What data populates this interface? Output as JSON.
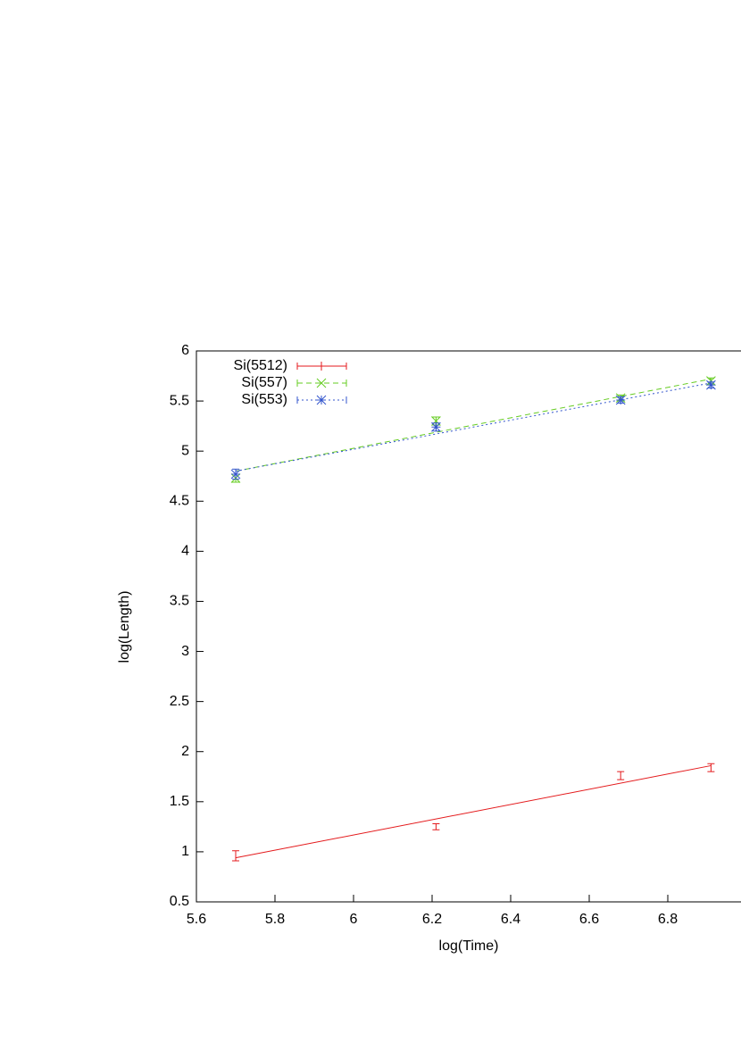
{
  "chart_data": {
    "type": "errorbar",
    "xlabel": "log(Time)",
    "ylabel": "log(Length)",
    "xlim": [
      5.6,
      7.0
    ],
    "xticks": [
      5.6,
      5.8,
      6,
      6.2,
      6.4,
      6.6,
      6.8
    ],
    "ylim": [
      0.5,
      6
    ],
    "yticks": [
      0.5,
      1,
      1.5,
      2,
      2.5,
      3,
      3.5,
      4,
      4.5,
      5,
      5.5,
      6
    ],
    "legend": "top-left",
    "series": [
      {
        "name": "Si(5512)",
        "color": "#e41a1c",
        "marker": "plus",
        "dash": "none",
        "x": [
          5.7,
          6.21,
          6.68,
          6.91
        ],
        "values": [
          0.96,
          1.25,
          1.76,
          1.84
        ],
        "errors": [
          0.05,
          0.03,
          0.04,
          0.04
        ],
        "fit": {
          "x": [
            5.7,
            6.91
          ],
          "values": [
            0.94,
            1.86
          ]
        }
      },
      {
        "name": "Si(557)",
        "color": "#66cc22",
        "marker": "cross",
        "dash": "6,4",
        "x": [
          5.7,
          6.21,
          6.68,
          6.91
        ],
        "values": [
          4.73,
          5.3,
          5.53,
          5.7
        ],
        "errors": [
          0.04,
          0.04,
          0.03,
          0.03
        ],
        "fit": {
          "x": [
            5.7,
            6.91
          ],
          "values": [
            4.8,
            5.72
          ]
        }
      },
      {
        "name": "Si(553)",
        "color": "#3355cc",
        "marker": "star",
        "dash": "2,3",
        "x": [
          5.7,
          6.21,
          6.68,
          6.91
        ],
        "values": [
          4.77,
          5.24,
          5.51,
          5.66
        ],
        "errors": [
          0.05,
          0.04,
          0.03,
          0.03
        ],
        "fit": {
          "x": [
            5.7,
            6.91
          ],
          "values": [
            4.8,
            5.68
          ]
        }
      }
    ]
  }
}
